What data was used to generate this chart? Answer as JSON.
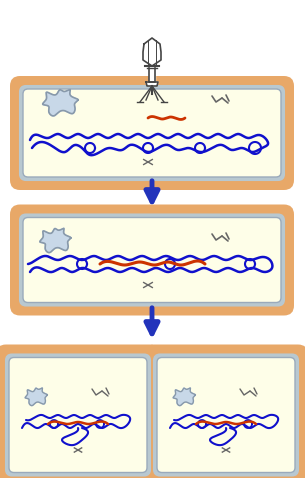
{
  "bg_color": "#ffffff",
  "cell_outer_color": "#E8A868",
  "cell_inner_bg": "#FEFEE8",
  "cell_membrane_color": "#B8C8D0",
  "cell_inner_border": "#9AAABB",
  "dna_blue": "#1010CC",
  "dna_red": "#CC3300",
  "arrow_color": "#2233BB",
  "phage_gray": "#444444",
  "blob_color": "#C8D8E8",
  "mark_color": "#666666"
}
